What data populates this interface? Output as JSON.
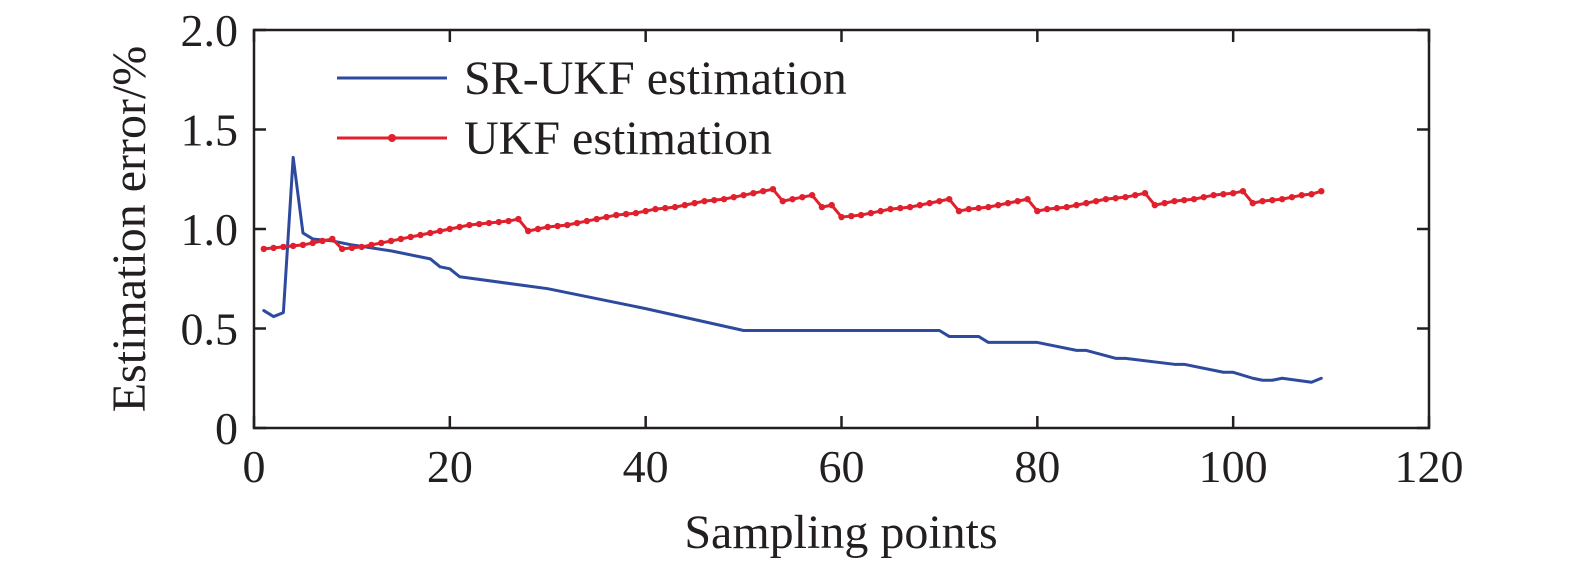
{
  "chart_data": {
    "type": "line",
    "title": "",
    "xlabel": "Sampling points",
    "ylabel": "Estimation error/%",
    "xlim": [
      0,
      120
    ],
    "ylim": [
      0,
      2.0
    ],
    "xticks": [
      0,
      20,
      40,
      60,
      80,
      100,
      120
    ],
    "xtick_labels": [
      "0",
      "20",
      "40",
      "60",
      "80",
      "100",
      "120"
    ],
    "yticks": [
      0,
      0.5,
      1.0,
      1.5,
      2.0
    ],
    "ytick_labels": [
      "0",
      "0.5",
      "1.0",
      "1.5",
      "2.0"
    ],
    "grid": false,
    "legend_position": "top-left",
    "series": [
      {
        "name": "SR-UKF estimation",
        "color": "#2e4a9e",
        "marker": "none",
        "x": [
          1,
          2,
          3,
          4,
          5,
          6,
          8,
          10,
          14,
          18,
          19,
          20,
          21,
          30,
          40,
          50,
          60,
          70,
          71,
          72,
          74,
          75,
          79,
          80,
          84,
          85,
          88,
          89,
          94,
          95,
          99,
          100,
          102,
          103,
          104,
          105,
          108,
          109
        ],
        "values": [
          0.59,
          0.56,
          0.58,
          1.36,
          0.98,
          0.95,
          0.94,
          0.92,
          0.89,
          0.85,
          0.81,
          0.8,
          0.76,
          0.7,
          0.6,
          0.49,
          0.49,
          0.49,
          0.46,
          0.46,
          0.46,
          0.43,
          0.43,
          0.43,
          0.39,
          0.39,
          0.35,
          0.35,
          0.32,
          0.32,
          0.28,
          0.28,
          0.25,
          0.24,
          0.24,
          0.25,
          0.23,
          0.25
        ]
      },
      {
        "name": "UKF estimation",
        "color": "#e0202c",
        "marker": "dot",
        "x": [
          1,
          2,
          3,
          4,
          5,
          6,
          7,
          8,
          9,
          10,
          11,
          12,
          13,
          14,
          15,
          16,
          17,
          18,
          19,
          20,
          21,
          22,
          23,
          24,
          25,
          26,
          27,
          28,
          29,
          30,
          31,
          32,
          33,
          34,
          35,
          36,
          37,
          38,
          39,
          40,
          41,
          42,
          43,
          44,
          45,
          46,
          47,
          48,
          49,
          50,
          51,
          52,
          53,
          54,
          55,
          56,
          57,
          58,
          59,
          60,
          61,
          62,
          63,
          64,
          65,
          66,
          67,
          68,
          69,
          70,
          71,
          72,
          73,
          74,
          75,
          76,
          77,
          78,
          79,
          80,
          81,
          82,
          83,
          84,
          85,
          86,
          87,
          88,
          89,
          90,
          91,
          92,
          93,
          94,
          95,
          96,
          97,
          98,
          99,
          100,
          101,
          102,
          103,
          104,
          105,
          106,
          107,
          108,
          109
        ],
        "values": [
          0.9,
          0.905,
          0.91,
          0.915,
          0.92,
          0.93,
          0.94,
          0.95,
          0.9,
          0.905,
          0.91,
          0.92,
          0.93,
          0.94,
          0.95,
          0.96,
          0.97,
          0.98,
          0.99,
          1.0,
          1.01,
          1.02,
          1.025,
          1.03,
          1.035,
          1.04,
          1.05,
          0.99,
          1.0,
          1.01,
          1.015,
          1.02,
          1.03,
          1.04,
          1.05,
          1.06,
          1.07,
          1.075,
          1.08,
          1.09,
          1.1,
          1.105,
          1.11,
          1.12,
          1.13,
          1.14,
          1.145,
          1.15,
          1.16,
          1.17,
          1.18,
          1.19,
          1.2,
          1.14,
          1.15,
          1.16,
          1.17,
          1.11,
          1.12,
          1.06,
          1.065,
          1.07,
          1.08,
          1.09,
          1.1,
          1.105,
          1.11,
          1.12,
          1.13,
          1.14,
          1.15,
          1.09,
          1.1,
          1.105,
          1.11,
          1.12,
          1.13,
          1.14,
          1.15,
          1.09,
          1.1,
          1.105,
          1.11,
          1.12,
          1.13,
          1.14,
          1.15,
          1.155,
          1.16,
          1.17,
          1.18,
          1.12,
          1.13,
          1.14,
          1.145,
          1.15,
          1.16,
          1.17,
          1.175,
          1.18,
          1.19,
          1.13,
          1.14,
          1.145,
          1.15,
          1.16,
          1.17,
          1.175,
          1.19
        ]
      }
    ]
  }
}
